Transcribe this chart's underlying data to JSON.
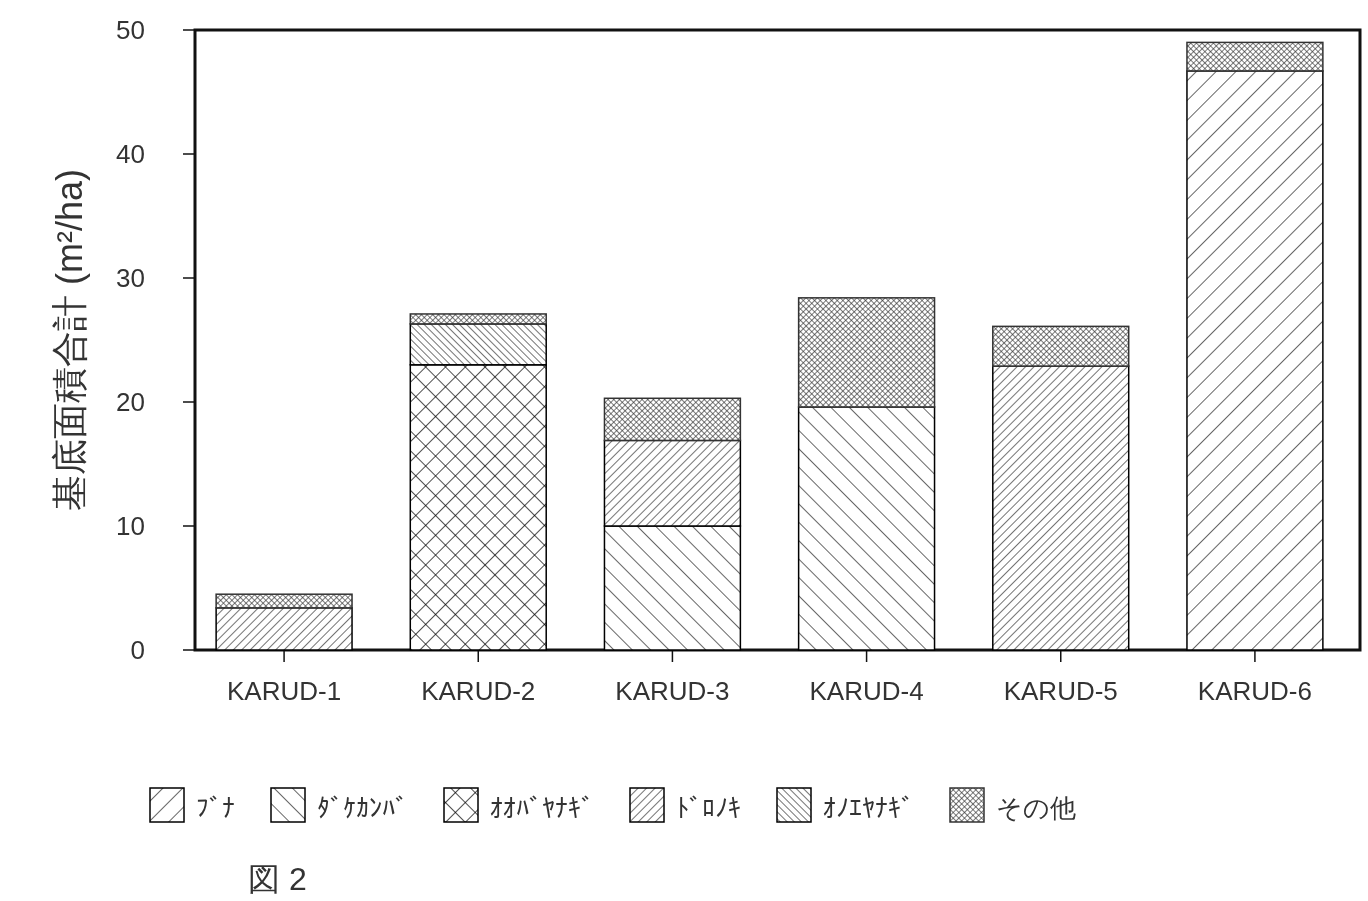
{
  "chart_data": {
    "type": "bar",
    "stacked": true,
    "ylabel": "基底面積合計 (m²/ha)",
    "categories": [
      "KARUD-1",
      "KARUD-2",
      "KARUD-3",
      "KARUD-4",
      "KARUD-5",
      "KARUD-6"
    ],
    "series": [
      {
        "name": "ﾌﾞﾅ",
        "color": "#000000",
        "values": [
          null,
          null,
          null,
          null,
          null,
          46.7
        ]
      },
      {
        "name": "ﾀﾞｹｶﾝﾊﾞ",
        "color": "#000000",
        "values": [
          null,
          null,
          10.0,
          19.6,
          null,
          null
        ]
      },
      {
        "name": "ｵｵﾊﾞﾔﾅｷﾞ",
        "color": "#000000",
        "values": [
          null,
          23.0,
          null,
          null,
          null,
          null
        ]
      },
      {
        "name": "ﾄﾞﾛﾉｷ",
        "color": "#000000",
        "values": [
          3.4,
          null,
          6.9,
          null,
          22.9,
          null
        ]
      },
      {
        "name": "ｵﾉｴﾔﾅｷﾞ",
        "color": "#000000",
        "values": [
          null,
          3.3,
          null,
          null,
          null,
          null
        ]
      },
      {
        "name": "その他",
        "color": "#333333",
        "values": [
          1.1,
          0.8,
          3.4,
          8.8,
          3.2,
          2.3
        ]
      }
    ],
    "ylim": [
      0,
      50
    ],
    "yticks": [
      0,
      10,
      20,
      30,
      40,
      50
    ],
    "legend": "bottom",
    "annotations": [
      "図 2"
    ]
  }
}
